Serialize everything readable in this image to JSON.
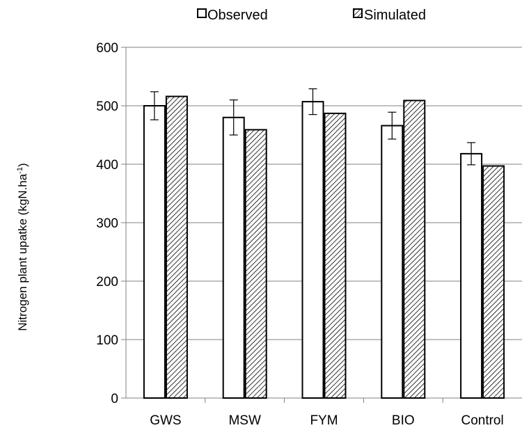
{
  "chart_data": {
    "type": "bar",
    "title": "",
    "xlabel": "",
    "ylabel": "Nitrogen plant upatke (kgN.ha",
    "ylabel_superscript": "-1",
    "ylabel_suffix": ")",
    "categories": [
      "GWS",
      "MSW",
      "FYM",
      "BIO",
      "Control"
    ],
    "series": [
      {
        "name": "Observed",
        "values": [
          500,
          480,
          507,
          466,
          418
        ],
        "error": [
          24,
          30,
          22,
          23,
          19
        ],
        "fill": "#ffffff"
      },
      {
        "name": "Simulated",
        "values": [
          516,
          459,
          487,
          509,
          397
        ],
        "fill": "hatched"
      }
    ],
    "ylim": [
      0,
      600
    ],
    "yticks": [
      0,
      100,
      200,
      300,
      400,
      500,
      600
    ],
    "ytick_labels": [
      "0",
      "100",
      "200",
      "300",
      "400",
      "500",
      "600"
    ],
    "grid": "horizontal",
    "legend_position": "top"
  },
  "colors": {
    "bar_stroke": "#000000",
    "grid": "#808080",
    "axis": "#808080",
    "hatch": "#000000"
  }
}
